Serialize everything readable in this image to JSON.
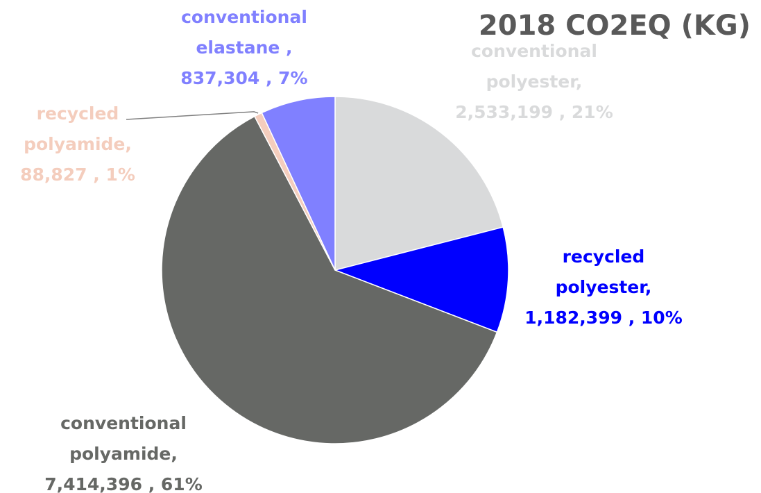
{
  "chart_data": {
    "type": "pie",
    "title": "2018 CO2EQ (KG)",
    "start_angle_deg": 0,
    "direction": "clockwise",
    "slices": [
      {
        "name": "conventional polyester",
        "value": 2533199,
        "percent": 21,
        "color": "#d9dadb",
        "label_lines": [
          "conventional",
          "polyester,",
          "2,533,199 , 21%"
        ]
      },
      {
        "name": "recycled polyester",
        "value": 1182399,
        "percent": 10,
        "color": "#0000ff",
        "label_lines": [
          "recycled",
          "polyester,",
          "1,182,399 , 10%"
        ]
      },
      {
        "name": "conventional polyamide",
        "value": 7414396,
        "percent": 61,
        "color": "#666865",
        "label_lines": [
          "conventional",
          "polyamide,",
          "7,414,396 , 61%"
        ]
      },
      {
        "name": "recycled polyamide",
        "value": 88827,
        "percent": 1,
        "color": "#f4cdbd",
        "label_lines": [
          "recycled",
          "polyamide,",
          "88,827 , 1%"
        ]
      },
      {
        "name": "conventional elastane",
        "value": 837304,
        "percent": 7,
        "color": "#8080ff",
        "label_lines": [
          "conventional",
          "elastane ,",
          "837,304 , 7%"
        ]
      }
    ],
    "leader_line_color": "#7f7f7f"
  }
}
